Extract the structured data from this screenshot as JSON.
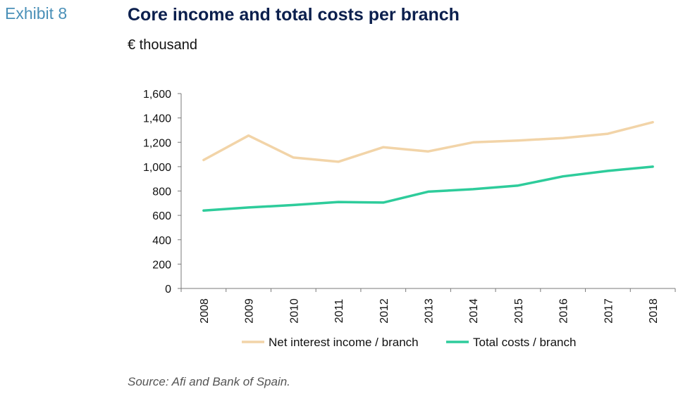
{
  "header": {
    "exhibit": "Exhibit 8",
    "title": "Core income and total costs per branch",
    "subtitle": "€ thousand"
  },
  "footer": {
    "source": "Source: Afi and Bank of Spain."
  },
  "chart_data": {
    "type": "line",
    "title": "Core income and total costs per branch",
    "subtitle": "€ thousand",
    "categories": [
      "2008",
      "2009",
      "2010",
      "2011",
      "2012",
      "2013",
      "2014",
      "2015",
      "2016",
      "2017",
      "2018"
    ],
    "series": [
      {
        "name": "Net interest income / branch",
        "color": "#f2d4a8",
        "values": [
          1055,
          1255,
          1075,
          1040,
          1160,
          1125,
          1200,
          1215,
          1235,
          1270,
          1365
        ]
      },
      {
        "name": "Total costs / branch",
        "color": "#2ecc9b",
        "values": [
          640,
          665,
          685,
          710,
          705,
          795,
          815,
          845,
          920,
          965,
          1000
        ]
      }
    ],
    "yticks": [
      "0",
      "200",
      "400",
      "600",
      "800",
      "1,000",
      "1,200",
      "1,400",
      "1,600"
    ],
    "ylim": [
      0,
      1600
    ],
    "grid": false,
    "legend_position": "bottom"
  }
}
